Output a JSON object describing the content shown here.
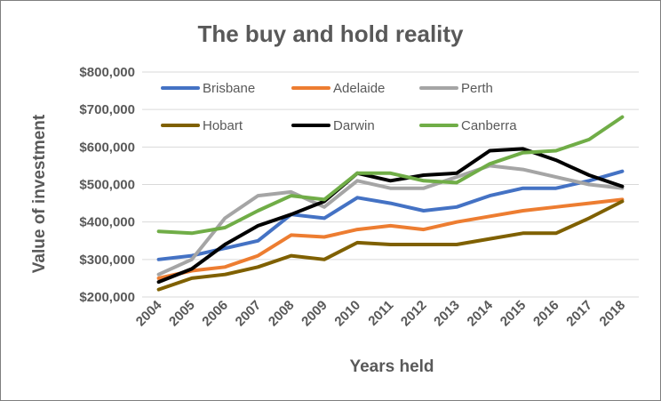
{
  "chart_data": {
    "type": "line",
    "title": "The buy and hold reality",
    "xlabel": "Years held",
    "ylabel": "Value of investment",
    "ylim": [
      200000,
      800000
    ],
    "y_ticks": [
      "$200,000",
      "$300,000",
      "$400,000",
      "$500,000",
      "$600,000",
      "$700,000",
      "$800,000"
    ],
    "grid": true,
    "legend_position": "top",
    "x": [
      "2004",
      "2005",
      "2006",
      "2007",
      "2008",
      "2009",
      "2010",
      "2011",
      "2012",
      "2013",
      "2014",
      "2015",
      "2016",
      "2017",
      "2018"
    ],
    "series": [
      {
        "name": "Brisbane",
        "color": "#4472C4",
        "values": [
          300000,
          310000,
          330000,
          350000,
          420000,
          410000,
          465000,
          450000,
          430000,
          440000,
          470000,
          490000,
          490000,
          510000,
          535000
        ]
      },
      {
        "name": "Adelaide",
        "color": "#ED7D31",
        "values": [
          250000,
          270000,
          280000,
          310000,
          365000,
          360000,
          380000,
          390000,
          380000,
          400000,
          415000,
          430000,
          440000,
          450000,
          460000
        ]
      },
      {
        "name": "Perth",
        "color": "#A5A5A5",
        "values": [
          260000,
          300000,
          410000,
          470000,
          480000,
          440000,
          510000,
          490000,
          490000,
          520000,
          550000,
          540000,
          520000,
          500000,
          490000
        ]
      },
      {
        "name": "Hobart",
        "color": "#7F6000",
        "values": [
          220000,
          250000,
          260000,
          280000,
          310000,
          300000,
          345000,
          340000,
          340000,
          340000,
          355000,
          370000,
          370000,
          410000,
          455000
        ]
      },
      {
        "name": "Darwin",
        "color": "#000000",
        "values": [
          240000,
          275000,
          340000,
          390000,
          420000,
          455000,
          530000,
          510000,
          525000,
          530000,
          590000,
          595000,
          565000,
          525000,
          495000
        ]
      },
      {
        "name": "Canberra",
        "color": "#70AD47",
        "values": [
          375000,
          370000,
          385000,
          430000,
          470000,
          460000,
          530000,
          530000,
          510000,
          505000,
          555000,
          585000,
          590000,
          620000,
          680000
        ]
      }
    ]
  }
}
